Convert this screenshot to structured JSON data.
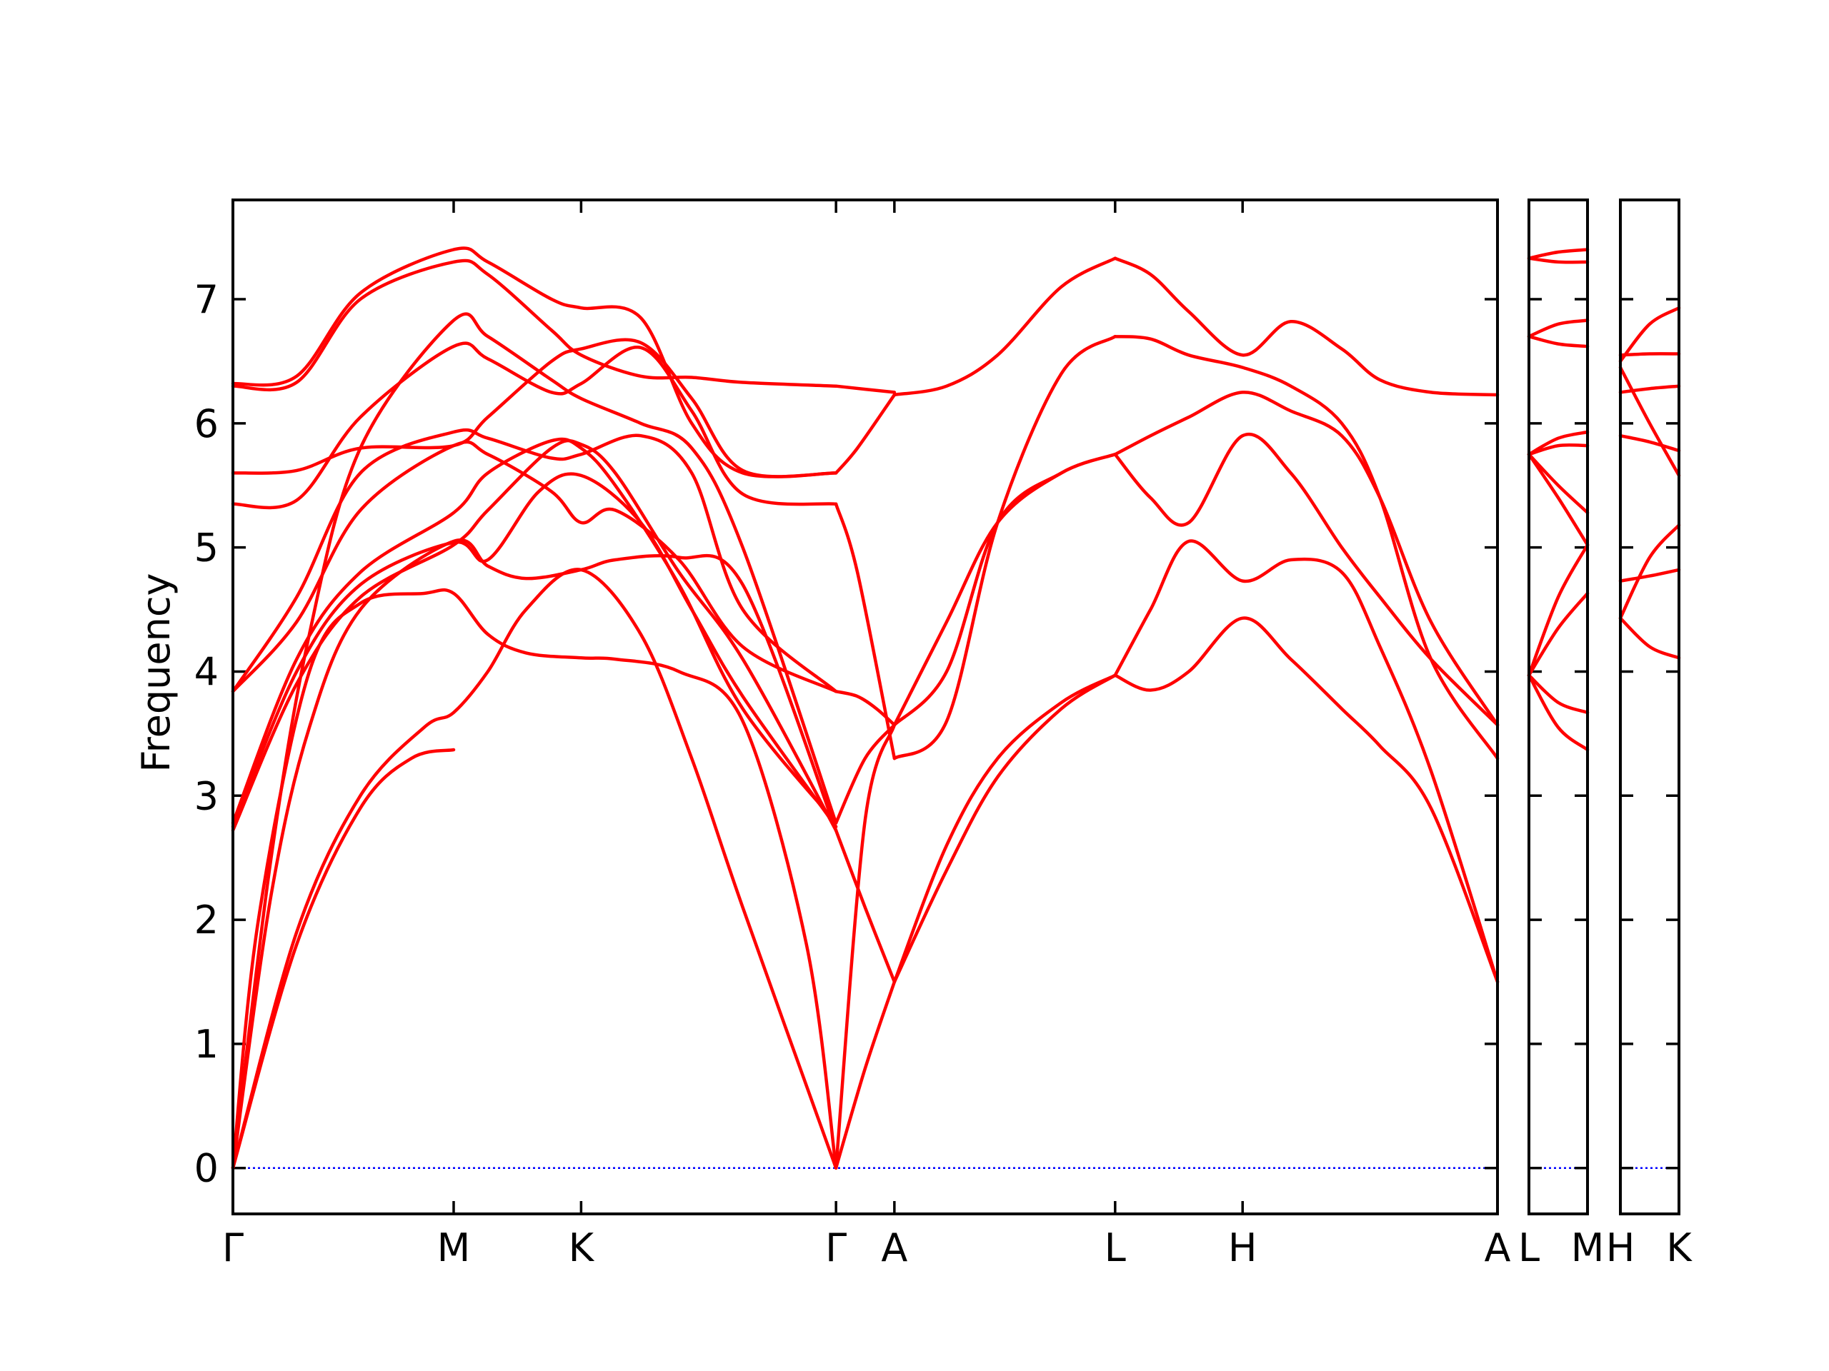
{
  "chart_data": {
    "type": "line",
    "ylabel": "Frequency",
    "ylim": [
      -0.37,
      7.8
    ],
    "yticks": [
      0,
      1,
      2,
      3,
      4,
      5,
      6,
      7
    ],
    "colors": {
      "bands": "#ff0000",
      "zero_line": "#0000ff",
      "frame": "#000000"
    },
    "panels": [
      {
        "labels": [
          "Γ",
          "M",
          "K",
          "Γ",
          "A",
          "L",
          "H",
          "A"
        ],
        "label_positions": [
          0,
          1.732,
          2.732,
          4.732,
          5.19,
          6.922,
          7.922,
          9.922
        ],
        "xlim": [
          0,
          9.922
        ],
        "series": [
          {
            "x": [
              0,
              0.5,
              1.0,
              1.4,
              1.732
            ],
            "y": [
              0,
              1.8,
              2.9,
              3.3,
              3.37
            ]
          },
          {
            "x": [
              0,
              0.5,
              1.0,
              1.5,
              1.732,
              2.0,
              2.3,
              2.732,
              3.2,
              3.6,
              4.0,
              4.732
            ],
            "y": [
              0,
              1.9,
              3.0,
              3.55,
              3.67,
              4.0,
              4.5,
              4.82,
              4.3,
              3.3,
              2.1,
              0
            ]
          },
          {
            "x": [
              0,
              0.3,
              0.6,
              1.0,
              1.732,
              2.0,
              2.3,
              2.732,
              3.0,
              3.5,
              4.0,
              4.732
            ],
            "y": [
              0,
              2.2,
              3.55,
              4.5,
              5.05,
              4.85,
              4.75,
              4.82,
              4.9,
              4.92,
              4.7,
              2.72
            ]
          },
          {
            "x": [
              0,
              0.2,
              0.6,
              1.0,
              1.5,
              1.732,
              2.0,
              2.3,
              2.732,
              3.0,
              3.5,
              4.0,
              4.5,
              4.732
            ],
            "y": [
              0,
              2.0,
              4.0,
              4.55,
              4.63,
              4.63,
              4.3,
              4.15,
              4.11,
              4.1,
              4.0,
              3.6,
              1.8,
              0
            ]
          },
          {
            "x": [
              0,
              0.5,
              1.0,
              1.732,
              2.0,
              2.5,
              2.732,
              3.0,
              3.5,
              4.0,
              4.732
            ],
            "y": [
              2.72,
              3.9,
              4.6,
              5.02,
              5.3,
              5.8,
              5.83,
              5.6,
              4.8,
              4.1,
              2.72
            ]
          },
          {
            "x": [
              0,
              0.5,
              1.0,
              1.732,
              2.0,
              2.4,
              2.732,
              3.2,
              3.6,
              4.0,
              4.732
            ],
            "y": [
              2.75,
              4.0,
              4.7,
              5.04,
              4.9,
              5.45,
              5.58,
              5.2,
              4.5,
              3.8,
              2.75
            ]
          },
          {
            "x": [
              0,
              0.5,
              1.0,
              1.732,
              2.0,
              2.5,
              2.732,
              3.0,
              3.5,
              4.0,
              4.732
            ],
            "y": [
              2.78,
              4.1,
              4.8,
              5.28,
              5.6,
              5.86,
              5.8,
              5.5,
              4.7,
              3.7,
              2.78
            ]
          },
          {
            "x": [
              0,
              0.5,
              1.0,
              1.732,
              2.0,
              2.5,
              2.732,
              3.0,
              3.5,
              4.0,
              4.732
            ],
            "y": [
              3.84,
              4.4,
              5.3,
              5.82,
              5.75,
              5.45,
              5.2,
              5.3,
              4.9,
              4.2,
              3.84
            ]
          },
          {
            "x": [
              0,
              0.5,
              1.0,
              1.732,
              2.0,
              2.5,
              2.732,
              3.2,
              3.6,
              4.0,
              4.732
            ],
            "y": [
              3.84,
              4.6,
              5.6,
              5.93,
              5.88,
              5.72,
              5.75,
              5.9,
              5.6,
              4.5,
              3.84
            ]
          },
          {
            "x": [
              0,
              0.5,
              1.0,
              1.732,
              2.0,
              2.5,
              2.732,
              3.2,
              3.6,
              4.0,
              4.732
            ],
            "y": [
              5.35,
              5.38,
              6.05,
              6.62,
              6.52,
              6.25,
              6.32,
              6.61,
              6.1,
              5.43,
              5.35
            ]
          },
          {
            "x": [
              0,
              0.5,
              1.0,
              1.732,
              2.0,
              2.5,
              2.732,
              3.2,
              3.6,
              4.0,
              4.732
            ],
            "y": [
              5.6,
              5.62,
              5.8,
              5.82,
              6.05,
              6.5,
              6.6,
              6.65,
              6.2,
              5.62,
              5.6
            ]
          },
          {
            "x": [
              0,
              0.5,
              1.0,
              1.732,
              2.0,
              2.5,
              2.732,
              3.2,
              3.6,
              4.0,
              4.732
            ],
            "y": [
              6.3,
              6.33,
              7.0,
              7.3,
              7.2,
              6.75,
              6.55,
              6.38,
              6.37,
              6.33,
              6.3
            ]
          },
          {
            "x": [
              0,
              0.5,
              1.0,
              1.732,
              2.0,
              2.5,
              2.732,
              3.2,
              3.6,
              4.0,
              4.732
            ],
            "y": [
              6.32,
              6.38,
              7.05,
              7.4,
              7.3,
              7.0,
              6.93,
              6.85,
              6.0,
              5.6,
              5.6
            ]
          },
          {
            "x": [
              0,
              0.3,
              0.6,
              1.0,
              1.732,
              2.0,
              2.5,
              2.732,
              3.2,
              3.6,
              4.0,
              4.732
            ],
            "y": [
              0,
              2.5,
              4.3,
              5.8,
              6.83,
              6.7,
              6.35,
              6.2,
              6.0,
              5.8,
              5.0,
              2.78
            ]
          },
          {
            "x": [
              4.732,
              4.96,
              5.19
            ],
            "y": [
              2.72,
              2.1,
              1.5
            ]
          },
          {
            "x": [
              4.732,
              4.96,
              5.19
            ],
            "y": [
              0,
              0.8,
              1.5
            ]
          },
          {
            "x": [
              4.732,
              4.96,
              5.19
            ],
            "y": [
              0,
              2.8,
              3.57
            ]
          },
          {
            "x": [
              4.732,
              4.96,
              5.19
            ],
            "y": [
              2.78,
              3.3,
              3.57
            ]
          },
          {
            "x": [
              4.732,
              4.9,
              5.05,
              5.19
            ],
            "y": [
              3.84,
              3.8,
              3.7,
              3.57
            ]
          },
          {
            "x": [
              4.732,
              4.9,
              5.19
            ],
            "y": [
              5.35,
              4.8,
              3.3
            ]
          },
          {
            "x": [
              4.732,
              4.9,
              5.19
            ],
            "y": [
              5.6,
              5.8,
              6.23
            ]
          },
          {
            "x": [
              4.732,
              5.19
            ],
            "y": [
              6.3,
              6.25
            ]
          },
          {
            "x": [
              5.19,
              5.6,
              6.0,
              6.5,
              6.922
            ],
            "y": [
              1.5,
              2.6,
              3.3,
              3.75,
              3.97
            ]
          },
          {
            "x": [
              5.19,
              5.6,
              6.0,
              6.5,
              6.922
            ],
            "y": [
              1.5,
              2.4,
              3.15,
              3.7,
              3.97
            ]
          },
          {
            "x": [
              5.19,
              5.6,
              6.0,
              6.5,
              6.922
            ],
            "y": [
              3.57,
              4.4,
              5.2,
              5.6,
              5.75
            ]
          },
          {
            "x": [
              5.19,
              5.6,
              6.0,
              6.5,
              6.922
            ],
            "y": [
              3.57,
              4.0,
              5.2,
              5.6,
              5.75
            ]
          },
          {
            "x": [
              5.19,
              5.6,
              6.0,
              6.5,
              6.922
            ],
            "y": [
              3.3,
              3.6,
              5.2,
              6.4,
              6.7
            ]
          },
          {
            "x": [
              5.19,
              5.6,
              6.0,
              6.5,
              6.922
            ],
            "y": [
              6.23,
              6.3,
              6.55,
              7.1,
              7.33
            ]
          },
          {
            "x": [
              6.922,
              7.2,
              7.5,
              7.922,
              8.3,
              8.7,
              9.0,
              9.4,
              9.922
            ],
            "y": [
              3.97,
              3.85,
              4.0,
              4.43,
              4.1,
              3.7,
              3.4,
              2.9,
              1.5
            ]
          },
          {
            "x": [
              6.922,
              7.2,
              7.5,
              7.922,
              8.3,
              8.7,
              9.0,
              9.4,
              9.922
            ],
            "y": [
              3.97,
              4.5,
              5.05,
              4.73,
              4.9,
              4.8,
              4.2,
              3.2,
              1.5
            ]
          },
          {
            "x": [
              6.922,
              7.2,
              7.5,
              7.922,
              8.3,
              8.7,
              9.0,
              9.4,
              9.922
            ],
            "y": [
              5.75,
              5.4,
              5.2,
              5.9,
              5.6,
              5.0,
              4.6,
              4.1,
              3.57
            ]
          },
          {
            "x": [
              6.922,
              7.2,
              7.5,
              7.922,
              8.3,
              8.7,
              9.0,
              9.4,
              9.922
            ],
            "y": [
              5.75,
              5.9,
              6.05,
              6.25,
              6.1,
              5.9,
              5.4,
              4.4,
              3.57
            ]
          },
          {
            "x": [
              6.922,
              7.2,
              7.5,
              7.922,
              8.3,
              8.7,
              9.0,
              9.4,
              9.922
            ],
            "y": [
              6.7,
              6.68,
              6.55,
              6.45,
              6.3,
              6.0,
              5.4,
              4.1,
              3.3
            ]
          },
          {
            "x": [
              6.922,
              7.2,
              7.5,
              7.922,
              8.3,
              8.7,
              9.0,
              9.4,
              9.922
            ],
            "y": [
              7.33,
              7.2,
              6.9,
              6.55,
              6.82,
              6.6,
              6.35,
              6.25,
              6.23
            ]
          }
        ]
      },
      {
        "labels": [
          "L",
          "M"
        ],
        "label_positions": [
          0,
          1
        ],
        "xlim": [
          0,
          1
        ],
        "series": [
          {
            "x": [
              0,
              0.5,
              1
            ],
            "y": [
              3.97,
              3.55,
              3.37
            ]
          },
          {
            "x": [
              0,
              0.5,
              1
            ],
            "y": [
              3.97,
              3.75,
              3.67
            ]
          },
          {
            "x": [
              0,
              0.5,
              1
            ],
            "y": [
              3.97,
              4.35,
              4.63
            ]
          },
          {
            "x": [
              0,
              0.5,
              1
            ],
            "y": [
              3.97,
              4.6,
              5.02
            ]
          },
          {
            "x": [
              0,
              0.5,
              1
            ],
            "y": [
              5.75,
              5.4,
              5.02
            ]
          },
          {
            "x": [
              0,
              0.5,
              1
            ],
            "y": [
              5.75,
              5.5,
              5.28
            ]
          },
          {
            "x": [
              0,
              0.5,
              1
            ],
            "y": [
              5.75,
              5.82,
              5.82
            ]
          },
          {
            "x": [
              0,
              0.5,
              1
            ],
            "y": [
              5.75,
              5.88,
              5.93
            ]
          },
          {
            "x": [
              0,
              0.5,
              1
            ],
            "y": [
              6.7,
              6.64,
              6.62
            ]
          },
          {
            "x": [
              0,
              0.5,
              1
            ],
            "y": [
              6.7,
              6.8,
              6.83
            ]
          },
          {
            "x": [
              0,
              0.5,
              1
            ],
            "y": [
              7.33,
              7.3,
              7.3
            ]
          },
          {
            "x": [
              0,
              0.5,
              1
            ],
            "y": [
              7.33,
              7.38,
              7.4
            ]
          }
        ]
      },
      {
        "labels": [
          "H",
          "K"
        ],
        "label_positions": [
          0,
          1
        ],
        "xlim": [
          0,
          1
        ],
        "series": [
          {
            "x": [
              0,
              0.5,
              1
            ],
            "y": [
              4.43,
              4.2,
              4.11
            ]
          },
          {
            "x": [
              0,
              0.5,
              1
            ],
            "y": [
              4.43,
              4.92,
              5.18
            ]
          },
          {
            "x": [
              0,
              0.5,
              1
            ],
            "y": [
              4.73,
              4.77,
              4.82
            ]
          },
          {
            "x": [
              0,
              0.5,
              1
            ],
            "y": [
              5.9,
              5.85,
              5.78
            ]
          },
          {
            "x": [
              0,
              0.5,
              1
            ],
            "y": [
              6.25,
              6.28,
              6.3
            ]
          },
          {
            "x": [
              0,
              0.5,
              1
            ],
            "y": [
              6.45,
              6.0,
              5.58
            ]
          },
          {
            "x": [
              0,
              0.5,
              1
            ],
            "y": [
              6.55,
              6.56,
              6.56
            ]
          },
          {
            "x": [
              0,
              0.5,
              1
            ],
            "y": [
              6.5,
              6.8,
              6.93
            ]
          }
        ]
      }
    ]
  }
}
